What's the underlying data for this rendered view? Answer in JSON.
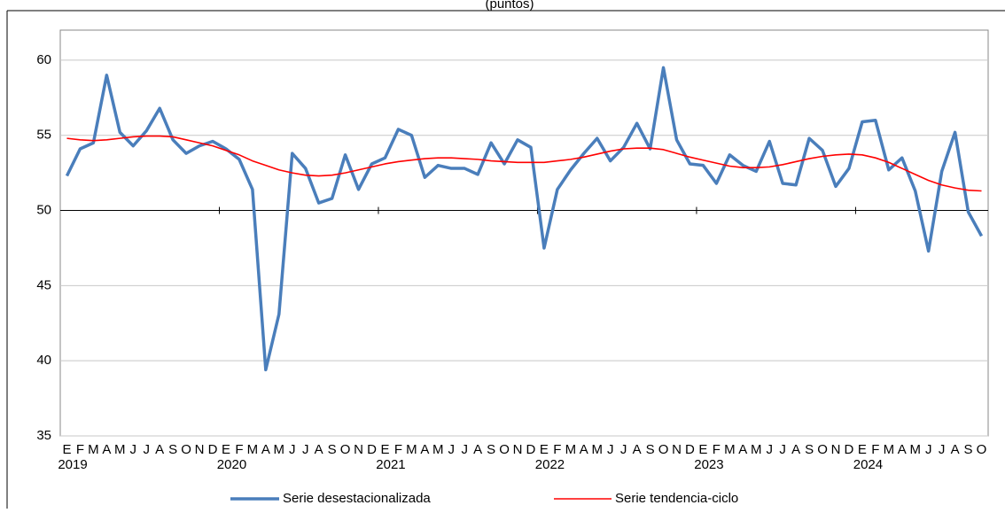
{
  "chart_data": {
    "type": "line",
    "title": "(puntos)",
    "categories": [
      "E",
      "F",
      "M",
      "A",
      "M",
      "J",
      "J",
      "A",
      "S",
      "O",
      "N",
      "D",
      "E",
      "F",
      "M",
      "A",
      "M",
      "J",
      "J",
      "A",
      "S",
      "O",
      "N",
      "D",
      "E",
      "F",
      "M",
      "A",
      "M",
      "J",
      "J",
      "A",
      "S",
      "O",
      "N",
      "D",
      "E",
      "F",
      "M",
      "A",
      "M",
      "J",
      "J",
      "A",
      "S",
      "O",
      "N",
      "D",
      "E",
      "F",
      "M",
      "A",
      "M",
      "J",
      "J",
      "A",
      "S",
      "O",
      "N",
      "D",
      "E",
      "F",
      "M",
      "A",
      "M",
      "J",
      "J",
      "A",
      "S",
      "O"
    ],
    "years": [
      "2019",
      "2020",
      "2021",
      "2022",
      "2023",
      "2024"
    ],
    "series": [
      {
        "name": "Serie desestacionalizada",
        "color": "#4a7ebb",
        "values": [
          52.3,
          54.1,
          54.5,
          59.0,
          55.2,
          54.3,
          55.3,
          56.8,
          54.7,
          53.8,
          54.3,
          54.6,
          54.1,
          53.4,
          51.4,
          39.4,
          43.1,
          53.8,
          52.8,
          50.5,
          50.8,
          53.7,
          51.4,
          53.1,
          53.5,
          55.4,
          55.0,
          52.2,
          53.0,
          52.8,
          52.8,
          52.4,
          54.5,
          53.1,
          54.7,
          54.2,
          47.5,
          51.4,
          52.7,
          53.8,
          54.8,
          53.3,
          54.2,
          55.8,
          54.1,
          59.5,
          54.7,
          53.1,
          53.0,
          51.8,
          53.7,
          53.0,
          52.6,
          54.6,
          51.8,
          51.7,
          54.8,
          54.0,
          51.6,
          52.8,
          55.9,
          56.0,
          52.7,
          53.5,
          51.3,
          47.3,
          52.6,
          55.2,
          49.9,
          48.3
        ]
      },
      {
        "name": "Serie tendencia-ciclo",
        "color": "#ff0000",
        "values": [
          54.8,
          54.7,
          54.65,
          54.7,
          54.8,
          54.9,
          54.95,
          54.95,
          54.9,
          54.7,
          54.5,
          54.3,
          54.0,
          53.7,
          53.3,
          53.0,
          52.7,
          52.5,
          52.35,
          52.3,
          52.35,
          52.5,
          52.7,
          52.9,
          53.1,
          53.25,
          53.35,
          53.45,
          53.5,
          53.5,
          53.45,
          53.4,
          53.3,
          53.25,
          53.2,
          53.2,
          53.2,
          53.3,
          53.4,
          53.55,
          53.75,
          53.95,
          54.1,
          54.15,
          54.15,
          54.05,
          53.8,
          53.55,
          53.35,
          53.15,
          52.95,
          52.85,
          52.85,
          52.9,
          53.05,
          53.25,
          53.45,
          53.6,
          53.7,
          53.75,
          53.7,
          53.5,
          53.2,
          52.8,
          52.4,
          52.0,
          51.7,
          51.5,
          51.35,
          51.3
        ]
      }
    ],
    "ylim": [
      35,
      62
    ],
    "yticks": [
      35,
      40,
      45,
      50,
      55,
      60
    ],
    "grid": true,
    "x_axis_at": 50,
    "legend": "bottom"
  }
}
